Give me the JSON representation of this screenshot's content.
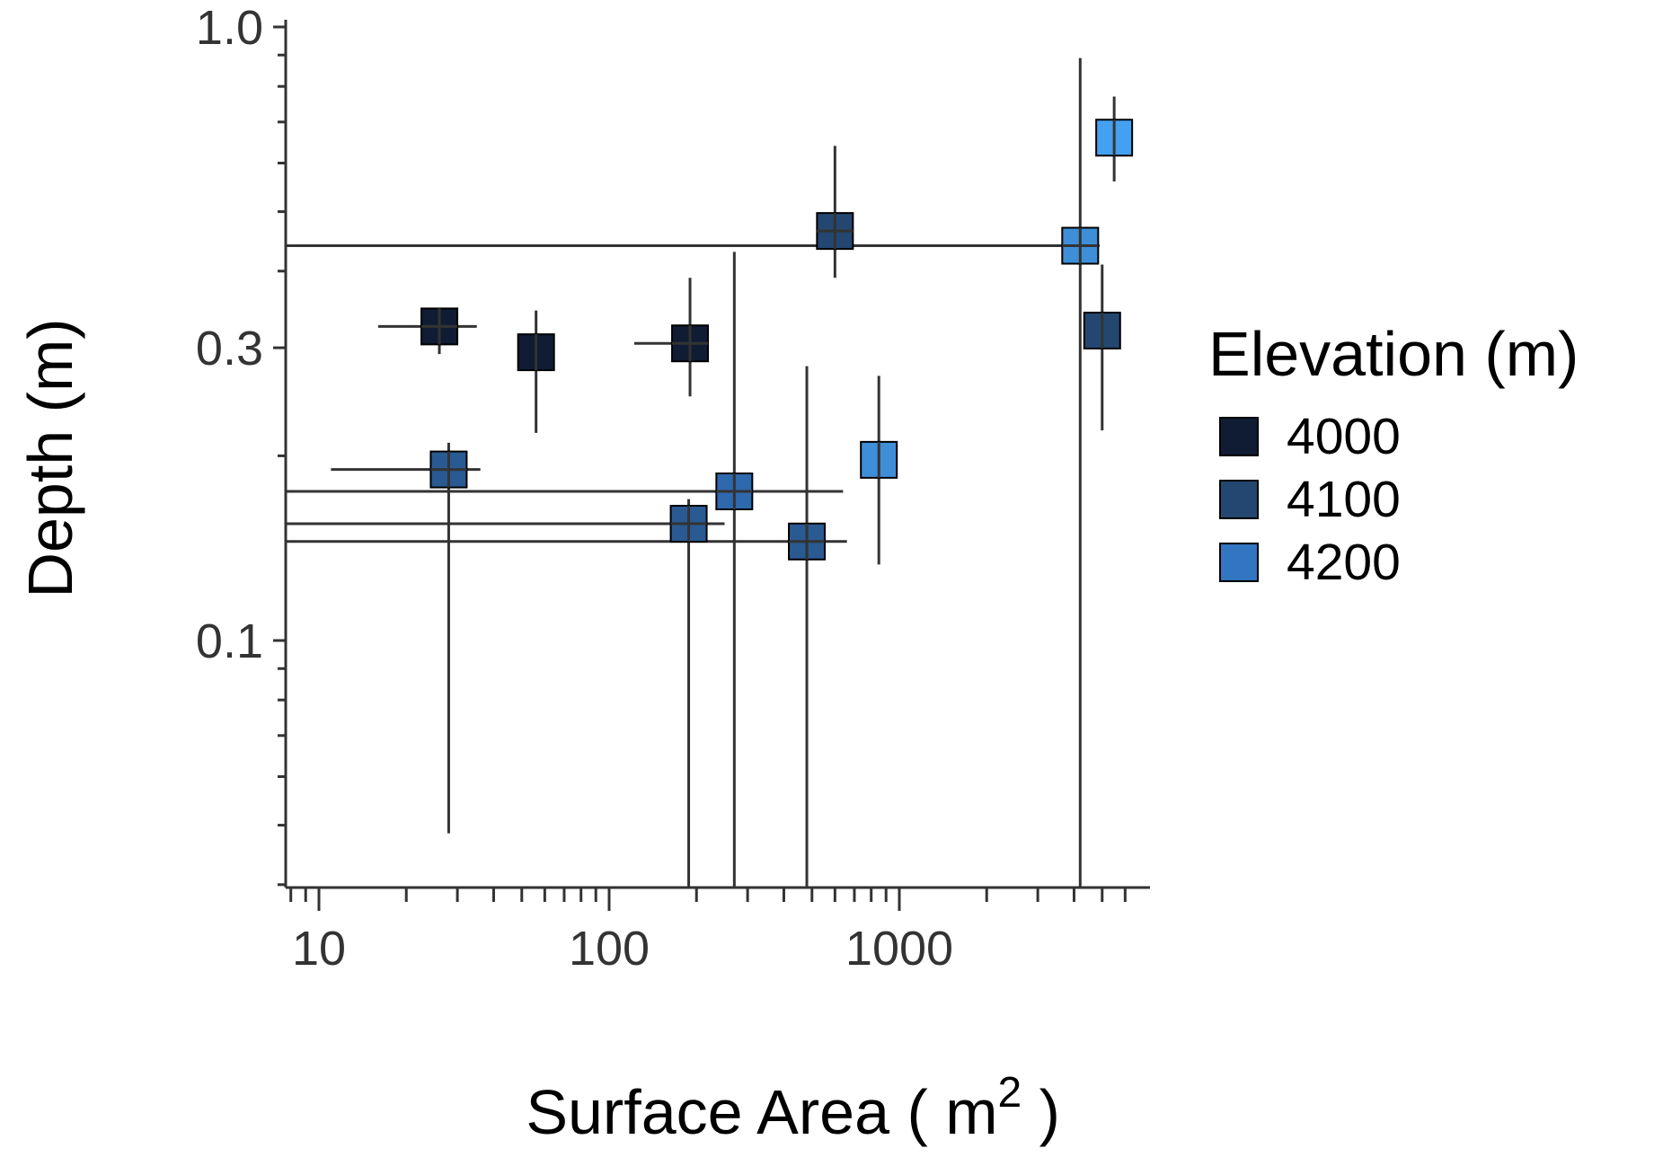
{
  "chart_data": {
    "type": "scatter",
    "xlabel": "Surface Area ( m",
    "xlabel_sup": "2",
    "xlabel_tail": " )",
    "ylabel": "Depth (m)",
    "xscale": "log",
    "yscale": "log",
    "xlim": [
      7.7,
      6500
    ],
    "ylim": [
      0.0395,
      1.0
    ],
    "xticks": [
      {
        "value": 10,
        "label": "10"
      },
      {
        "value": 100,
        "label": "100"
      },
      {
        "value": 1000,
        "label": "1000"
      }
    ],
    "yticks": [
      {
        "value": 0.1,
        "label": "0.1"
      },
      {
        "value": 0.3,
        "label": "0.3"
      },
      {
        "value": 1.0,
        "label": "1.0"
      }
    ],
    "grid": false,
    "legend": {
      "title": "Elevation (m)",
      "position": "right",
      "entries": [
        {
          "label": "4000",
          "color": "#0f1c33"
        },
        {
          "label": "4100",
          "color": "#234770"
        },
        {
          "label": "4200",
          "color": "#3275c0"
        }
      ]
    },
    "errorbar_color": "#333333",
    "points": [
      {
        "x": 26,
        "y": 0.325,
        "color": "#0f1c33",
        "xerr": [
          16,
          35
        ],
        "yerr": [
          0.293,
          0.345
        ]
      },
      {
        "x": 56,
        "y": 0.295,
        "color": "#0f1c33",
        "yerr": [
          0.218,
          0.345
        ]
      },
      {
        "x": 190,
        "y": 0.305,
        "color": "#0f1c33",
        "xerr": [
          122,
          210
        ],
        "yerr": [
          0.25,
          0.39
        ]
      },
      {
        "x": 600,
        "y": 0.465,
        "color": "#234770",
        "xerr": [
          560,
          660
        ],
        "yerr": [
          0.39,
          0.64
        ]
      },
      {
        "x": 5000,
        "y": 0.32,
        "color": "#234770",
        "yerr": [
          0.22,
          0.41
        ]
      },
      {
        "x": 28,
        "y": 0.19,
        "color": "#2a5a92",
        "xerr": [
          11,
          36
        ],
        "yerr": [
          0.0485,
          0.21
        ]
      },
      {
        "x": 188,
        "y": 0.155,
        "color": "#2a5a92",
        "xerr": [
          7.7,
          250
        ],
        "yerr": [
          0.0395,
          0.17
        ]
      },
      {
        "x": 270,
        "y": 0.175,
        "color": "#2e68ad",
        "xerr": [
          7.7,
          640
        ],
        "yerr": [
          0.0395,
          0.43
        ]
      },
      {
        "x": 480,
        "y": 0.145,
        "color": "#2a5a92",
        "xerr": [
          7.7,
          660
        ],
        "yerr": [
          0.0395,
          0.28
        ]
      },
      {
        "x": 850,
        "y": 0.197,
        "color": "#3f8ed8",
        "yerr": [
          0.133,
          0.27
        ]
      },
      {
        "x": 4200,
        "y": 0.44,
        "color": "#3f8ed8",
        "xerr": [
          7.7,
          4900
        ],
        "yerr": [
          0.0395,
          0.89
        ]
      },
      {
        "x": 5500,
        "y": 0.66,
        "color": "#44a0f0",
        "yerr": [
          0.56,
          0.77
        ]
      }
    ]
  }
}
